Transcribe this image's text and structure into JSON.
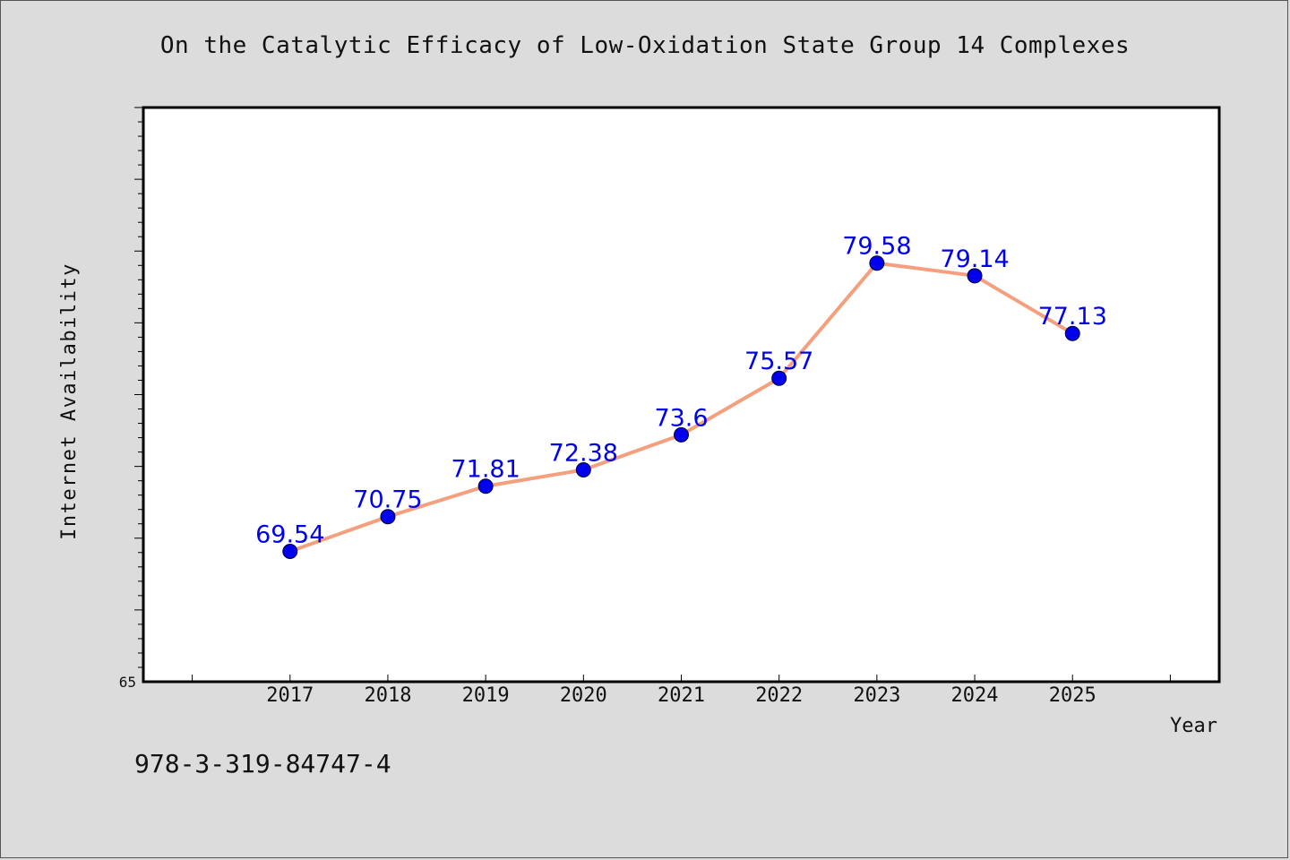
{
  "chart_data": {
    "type": "line",
    "title": "On the Catalytic Efficacy of Low-Oxidation State Group 14 Complexes",
    "xlabel": "Year",
    "ylabel": "Internet Availability",
    "x": [
      "2017",
      "2018",
      "2019",
      "2020",
      "2021",
      "2022",
      "2023",
      "2024",
      "2025"
    ],
    "series": [
      {
        "values": [
          69.54,
          70.75,
          71.81,
          72.38,
          73.6,
          75.57,
          79.58,
          79.14,
          77.13
        ],
        "labels": [
          "69.54",
          "70.75",
          "71.81",
          "72.38",
          "73.6",
          "75.57",
          "79.58",
          "79.14",
          "77.13"
        ],
        "line_color": "#f4a07e",
        "marker_color": "#0000ee"
      }
    ],
    "ylim": [
      65,
      85
    ],
    "xlim": [
      2015.5,
      2026.5
    ],
    "y_tick_labels": [
      "65"
    ],
    "grid": false,
    "data_label_color": "#0000ee"
  },
  "footnote": "978-3-319-84747-4"
}
